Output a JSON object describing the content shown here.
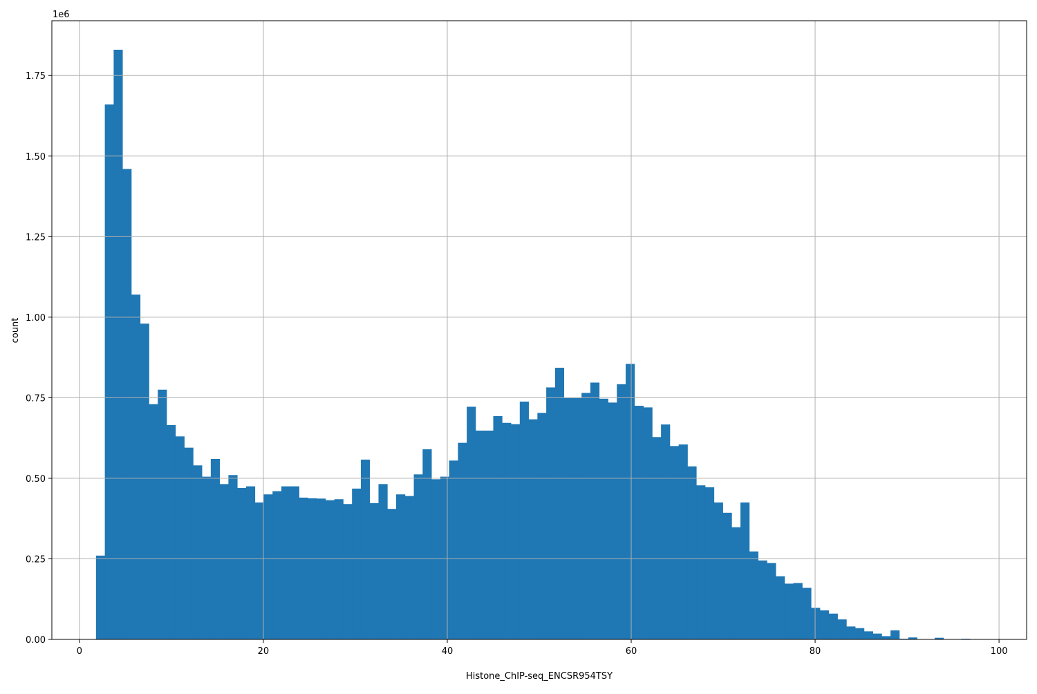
{
  "chart_data": {
    "type": "bar",
    "title": "",
    "xlabel": "Histone_ChIP-seq_ENCSR954TSY",
    "ylabel": "count",
    "y_offset_label": "1e6",
    "bar_color": "#1f77b4",
    "grid": true,
    "legend": "none",
    "xlim": [
      -3,
      103
    ],
    "ylim": [
      0,
      1.92
    ],
    "x_ticks": [
      0,
      20,
      40,
      60,
      80,
      100
    ],
    "x_tick_labels": [
      "0",
      "20",
      "40",
      "60",
      "80",
      "100"
    ],
    "y_ticks": [
      0,
      0.25,
      0.5,
      0.75,
      1.0,
      1.25,
      1.5,
      1.75
    ],
    "y_tick_labels": [
      "0.00",
      "0.25",
      "0.50",
      "0.75",
      "1.00",
      "1.25",
      "1.50",
      "1.75"
    ],
    "bin_start": 1.8,
    "bin_width": 0.96,
    "values": [
      0.26,
      1.66,
      1.83,
      1.46,
      1.07,
      0.98,
      0.73,
      0.775,
      0.665,
      0.63,
      0.595,
      0.54,
      0.505,
      0.56,
      0.482,
      0.51,
      0.47,
      0.475,
      0.425,
      0.45,
      0.46,
      0.475,
      0.475,
      0.44,
      0.438,
      0.437,
      0.432,
      0.435,
      0.42,
      0.468,
      0.558,
      0.423,
      0.482,
      0.405,
      0.45,
      0.445,
      0.512,
      0.59,
      0.497,
      0.505,
      0.555,
      0.61,
      0.722,
      0.648,
      0.648,
      0.693,
      0.672,
      0.668,
      0.738,
      0.683,
      0.703,
      0.782,
      0.843,
      0.75,
      0.75,
      0.765,
      0.797,
      0.747,
      0.735,
      0.792,
      0.855,
      0.725,
      0.72,
      0.628,
      0.667,
      0.6,
      0.605,
      0.537,
      0.478,
      0.472,
      0.425,
      0.393,
      0.348,
      0.425,
      0.273,
      0.245,
      0.237,
      0.196,
      0.173,
      0.175,
      0.16,
      0.098,
      0.09,
      0.08,
      0.062,
      0.04,
      0.035,
      0.025,
      0.018,
      0.01,
      0.028,
      0.002,
      0.006,
      0.001,
      0.001,
      0.005,
      0.001,
      0.001,
      0.002,
      0.001,
      0.001
    ]
  }
}
